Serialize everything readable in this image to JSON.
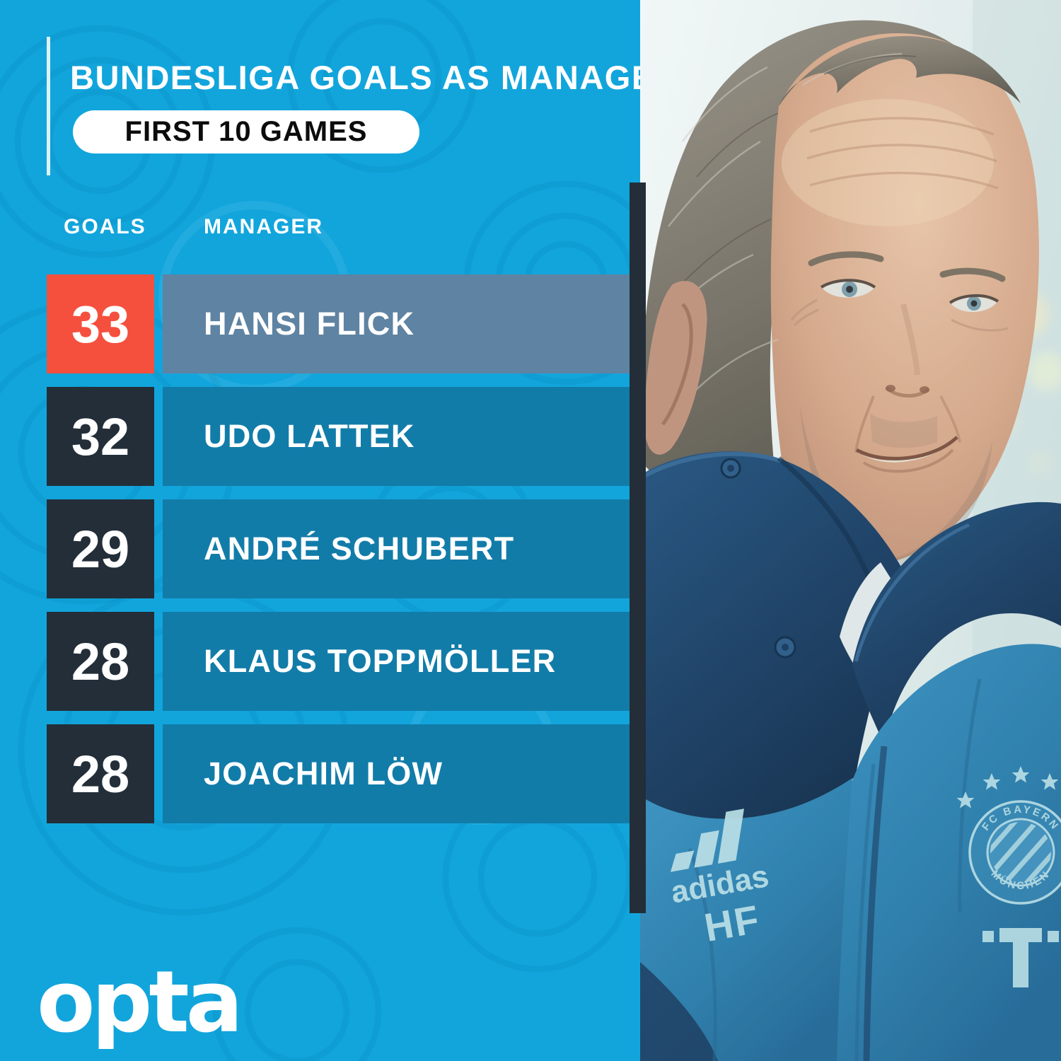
{
  "header": {
    "title": "BUNDESLIGA GOALS AS MANAGER",
    "subtitle": "FIRST 10 GAMES"
  },
  "table": {
    "columns": [
      "GOALS",
      "MANAGER"
    ],
    "rows": [
      {
        "goals": "33",
        "manager": "HANSI FLICK",
        "highlight": true
      },
      {
        "goals": "32",
        "manager": "UDO LATTEK",
        "highlight": false
      },
      {
        "goals": "29",
        "manager": "ANDRÉ SCHUBERT",
        "highlight": false
      },
      {
        "goals": "28",
        "manager": "KLAUS TOPPMÖLLER",
        "highlight": false
      },
      {
        "goals": "28",
        "manager": "JOACHIM LÖW",
        "highlight": false
      }
    ]
  },
  "branding": {
    "logo_text": "opta"
  },
  "photo": {
    "subject": "Hansi Flick portrait",
    "jacket_brand": "adidas",
    "jacket_initials": "HF",
    "badge_text_top": "FC BAYERN",
    "badge_text_bottom": "MÜNCHEN",
    "sponsor_symbol": "T"
  },
  "colors": {
    "background": "#12A5DC",
    "bar": "#127CA9",
    "bar_highlight": "#5F83A2",
    "box": "#232E39",
    "box_highlight": "#F5503E",
    "dark_strip": "#232E39",
    "pill_ink": "#0C0C0C",
    "text": "#FFFFFF"
  },
  "chart_data": {
    "type": "table",
    "title": "BUNDESLIGA GOALS AS MANAGER",
    "subtitle": "FIRST 10 GAMES",
    "columns": [
      "GOALS",
      "MANAGER"
    ],
    "categories": [
      "HANSI FLICK",
      "UDO LATTEK",
      "ANDRÉ SCHUBERT",
      "KLAUS TOPPMÖLLER",
      "JOACHIM LÖW"
    ],
    "values": [
      33,
      32,
      29,
      28,
      28
    ],
    "highlighted": "HANSI FLICK",
    "legend": false,
    "grid": false
  }
}
